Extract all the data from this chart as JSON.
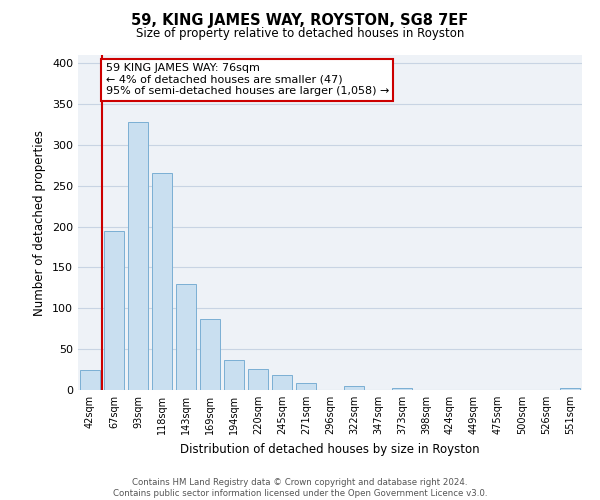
{
  "title": "59, KING JAMES WAY, ROYSTON, SG8 7EF",
  "subtitle": "Size of property relative to detached houses in Royston",
  "xlabel": "Distribution of detached houses by size in Royston",
  "ylabel": "Number of detached properties",
  "bar_labels": [
    "42sqm",
    "67sqm",
    "93sqm",
    "118sqm",
    "143sqm",
    "169sqm",
    "194sqm",
    "220sqm",
    "245sqm",
    "271sqm",
    "296sqm",
    "322sqm",
    "347sqm",
    "373sqm",
    "398sqm",
    "424sqm",
    "449sqm",
    "475sqm",
    "500sqm",
    "526sqm",
    "551sqm"
  ],
  "bar_values": [
    25,
    195,
    328,
    265,
    130,
    87,
    37,
    26,
    18,
    8,
    0,
    5,
    0,
    2,
    0,
    0,
    0,
    0,
    0,
    0,
    3
  ],
  "bar_color": "#c9dff0",
  "bar_edge_color": "#7aafd4",
  "property_line_x": 0.5,
  "annotation_line1": "59 KING JAMES WAY: 76sqm",
  "annotation_line2": "← 4% of detached houses are smaller (47)",
  "annotation_line3": "95% of semi-detached houses are larger (1,058) →",
  "property_line_color": "#cc0000",
  "ylim": [
    0,
    410
  ],
  "yticks": [
    0,
    50,
    100,
    150,
    200,
    250,
    300,
    350,
    400
  ],
  "footer_line1": "Contains HM Land Registry data © Crown copyright and database right 2024.",
  "footer_line2": "Contains public sector information licensed under the Open Government Licence v3.0.",
  "background_color": "#eef2f7",
  "grid_color": "#c8d4e3"
}
